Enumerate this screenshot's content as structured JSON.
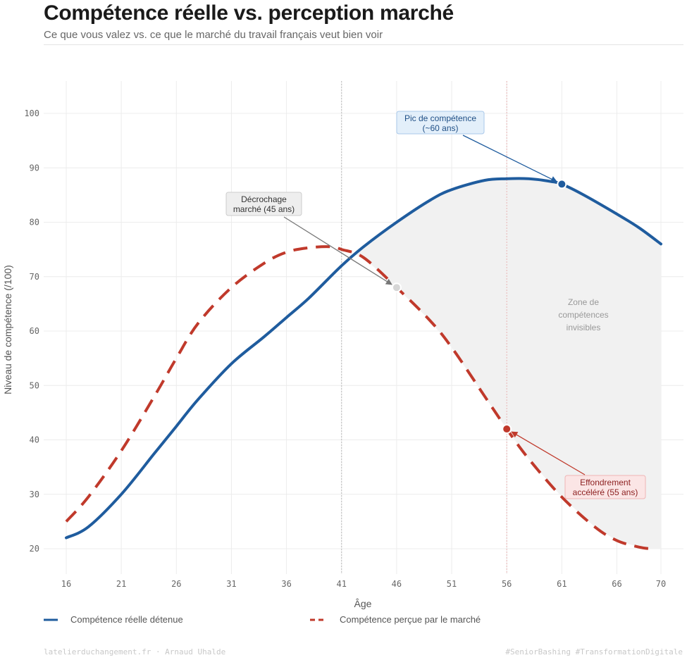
{
  "header": {
    "title": "Compétence réelle vs. perception marché",
    "subtitle": "Ce que vous valez vs. ce que le marché du travail français veut bien voir"
  },
  "legend": {
    "real": "Compétence réelle détenue",
    "perceived": "Compétence perçue par le marché"
  },
  "footer": {
    "left": "latelierduchangement.fr  ·  Arnaud Uhalde",
    "right": "#SeniorBashing  #TransformationDigitale"
  },
  "colors": {
    "real": "#1f5c9e",
    "perceived": "#c0392b",
    "grid": "#ececec",
    "fill": "#f1f1f1"
  },
  "chart_data": {
    "type": "line",
    "xlabel": "Âge",
    "ylabel": "Niveau de compétence (/100)",
    "xlim": [
      16,
      70
    ],
    "ylim": [
      15,
      105
    ],
    "xticks": [
      16,
      21,
      26,
      31,
      36,
      41,
      46,
      51,
      56,
      61,
      66,
      70
    ],
    "yticks": [
      20,
      30,
      40,
      50,
      60,
      70,
      80,
      90,
      100
    ],
    "series": [
      {
        "name": "Compétence réelle détenue",
        "style": "solid",
        "x": [
          16,
          18,
          21,
          24,
          26,
          28,
          31,
          34,
          36,
          38,
          41,
          43,
          46,
          49,
          51,
          54,
          56,
          58,
          60,
          61,
          63,
          66,
          68,
          70
        ],
        "y": [
          22,
          24,
          30,
          37.5,
          42.5,
          47.5,
          54,
          59,
          62.5,
          66,
          72,
          75.5,
          80,
          84,
          86,
          87.7,
          88,
          88,
          87.5,
          87,
          85,
          81.5,
          79,
          76
        ]
      },
      {
        "name": "Compétence perçue par le marché",
        "style": "dashed",
        "x": [
          16,
          18,
          21,
          24,
          26,
          28,
          31,
          34,
          36,
          38,
          40,
          41,
          43,
          46,
          49,
          51,
          54,
          56,
          58,
          61,
          64,
          66,
          68,
          69
        ],
        "y": [
          25,
          29.5,
          38,
          48,
          55,
          61.5,
          68,
          72.5,
          74.5,
          75.3,
          75.5,
          75,
          73.5,
          68,
          62,
          57,
          48,
          42,
          36.5,
          29.5,
          24,
          21.5,
          20.3,
          20
        ]
      }
    ],
    "vlines": [
      41,
      56
    ],
    "shaded_region": {
      "label": "Zone de compétences invisibles",
      "x_start": 42,
      "x_end": 70
    },
    "points": [
      {
        "series": "Compétence réelle détenue",
        "x": 61,
        "y": 87
      },
      {
        "series": "Compétence perçue par le marché",
        "x": 46,
        "y": 68
      },
      {
        "series": "Compétence perçue par le marché",
        "x": 56,
        "y": 42
      }
    ],
    "annotations": [
      {
        "line1": "Pic de compétence",
        "line2": "(~60 ans)",
        "target_x": 61,
        "target_y": 87
      },
      {
        "line1": "Décrochage",
        "line2": "marché (45 ans)",
        "target_x": 46,
        "target_y": 68
      },
      {
        "line1": "Effondrement",
        "line2": "accéléré (55 ans)",
        "target_x": 56,
        "target_y": 42
      }
    ],
    "zone_label": [
      "Zone de",
      "compétences",
      "invisibles"
    ]
  }
}
